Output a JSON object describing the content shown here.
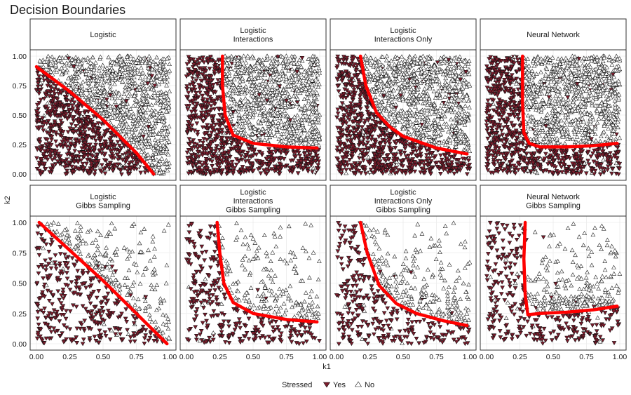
{
  "title": "Decision Boundaries",
  "chart_data": {
    "type": "scatter",
    "title": "Decision Boundaries",
    "xlabel": "k1",
    "ylabel": "k2",
    "xlim": [
      0,
      1
    ],
    "ylim": [
      0,
      1
    ],
    "x_ticks": [
      "0.00",
      "0.25",
      "0.50",
      "0.75",
      "1.00"
    ],
    "y_ticks": [
      "0.00",
      "0.25",
      "0.50",
      "0.75",
      "1.00"
    ],
    "grid": true,
    "legend": {
      "title": "Stressed",
      "placement": "bottom",
      "entries": [
        {
          "label": "Yes",
          "marker": "triangle-down",
          "fill": "#7b1c2c"
        },
        {
          "label": "No",
          "marker": "triangle-up",
          "fill": "#ffffff"
        }
      ]
    },
    "colors": {
      "yes": "#7b1c2c",
      "no": "#ffffff",
      "boundary": "#ff0000"
    },
    "panels": [
      {
        "title": [
          "Logistic"
        ],
        "row": 0,
        "col": 0,
        "boundary": [
          [
            0.0,
            0.91
          ],
          [
            0.25,
            0.7
          ],
          [
            0.5,
            0.46
          ],
          [
            0.75,
            0.18
          ],
          [
            0.88,
            0.0
          ]
        ]
      },
      {
        "title": [
          "Logistic",
          "Interactions"
        ],
        "row": 0,
        "col": 1,
        "boundary": [
          [
            0.27,
            1.0
          ],
          [
            0.27,
            0.75
          ],
          [
            0.29,
            0.5
          ],
          [
            0.35,
            0.33
          ],
          [
            0.5,
            0.26
          ],
          [
            0.75,
            0.23
          ],
          [
            0.98,
            0.22
          ]
        ]
      },
      {
        "title": [
          "Logistic",
          "Interactions Only"
        ],
        "row": 0,
        "col": 2,
        "boundary": [
          [
            0.18,
            1.0
          ],
          [
            0.22,
            0.75
          ],
          [
            0.3,
            0.52
          ],
          [
            0.4,
            0.4
          ],
          [
            0.5,
            0.32
          ],
          [
            0.75,
            0.22
          ],
          [
            0.98,
            0.17
          ]
        ]
      },
      {
        "title": [
          "Neural Network"
        ],
        "row": 0,
        "col": 3,
        "boundary": [
          [
            0.27,
            1.0
          ],
          [
            0.27,
            0.6
          ],
          [
            0.28,
            0.35
          ],
          [
            0.32,
            0.26
          ],
          [
            0.4,
            0.23
          ],
          [
            0.6,
            0.23
          ],
          [
            0.8,
            0.24
          ],
          [
            0.98,
            0.26
          ]
        ]
      },
      {
        "title": [
          "Logistic",
          "Gibbs Sampling"
        ],
        "row": 1,
        "col": 0,
        "boundary": [
          [
            0.02,
            1.0
          ],
          [
            0.25,
            0.77
          ],
          [
            0.5,
            0.52
          ],
          [
            0.75,
            0.25
          ],
          [
            0.98,
            0.0
          ]
        ]
      },
      {
        "title": [
          "Logistic",
          "Interactions",
          "Gibbs Sampling"
        ],
        "row": 1,
        "col": 1,
        "boundary": [
          [
            0.23,
            1.0
          ],
          [
            0.25,
            0.75
          ],
          [
            0.28,
            0.5
          ],
          [
            0.35,
            0.34
          ],
          [
            0.5,
            0.25
          ],
          [
            0.75,
            0.2
          ],
          [
            0.98,
            0.18
          ]
        ]
      },
      {
        "title": [
          "Logistic",
          "Interactions Only",
          "Gibbs Sampling"
        ],
        "row": 1,
        "col": 2,
        "boundary": [
          [
            0.18,
            1.0
          ],
          [
            0.23,
            0.75
          ],
          [
            0.32,
            0.48
          ],
          [
            0.45,
            0.33
          ],
          [
            0.6,
            0.25
          ],
          [
            0.8,
            0.19
          ],
          [
            0.98,
            0.15
          ]
        ]
      },
      {
        "title": [
          "Neural Network",
          "Gibbs Sampling"
        ],
        "row": 1,
        "col": 3,
        "boundary": [
          [
            0.29,
            1.0
          ],
          [
            0.28,
            0.7
          ],
          [
            0.29,
            0.4
          ],
          [
            0.31,
            0.24
          ],
          [
            0.4,
            0.25
          ],
          [
            0.6,
            0.26
          ],
          [
            0.8,
            0.28
          ],
          [
            0.98,
            0.31
          ]
        ]
      }
    ]
  }
}
